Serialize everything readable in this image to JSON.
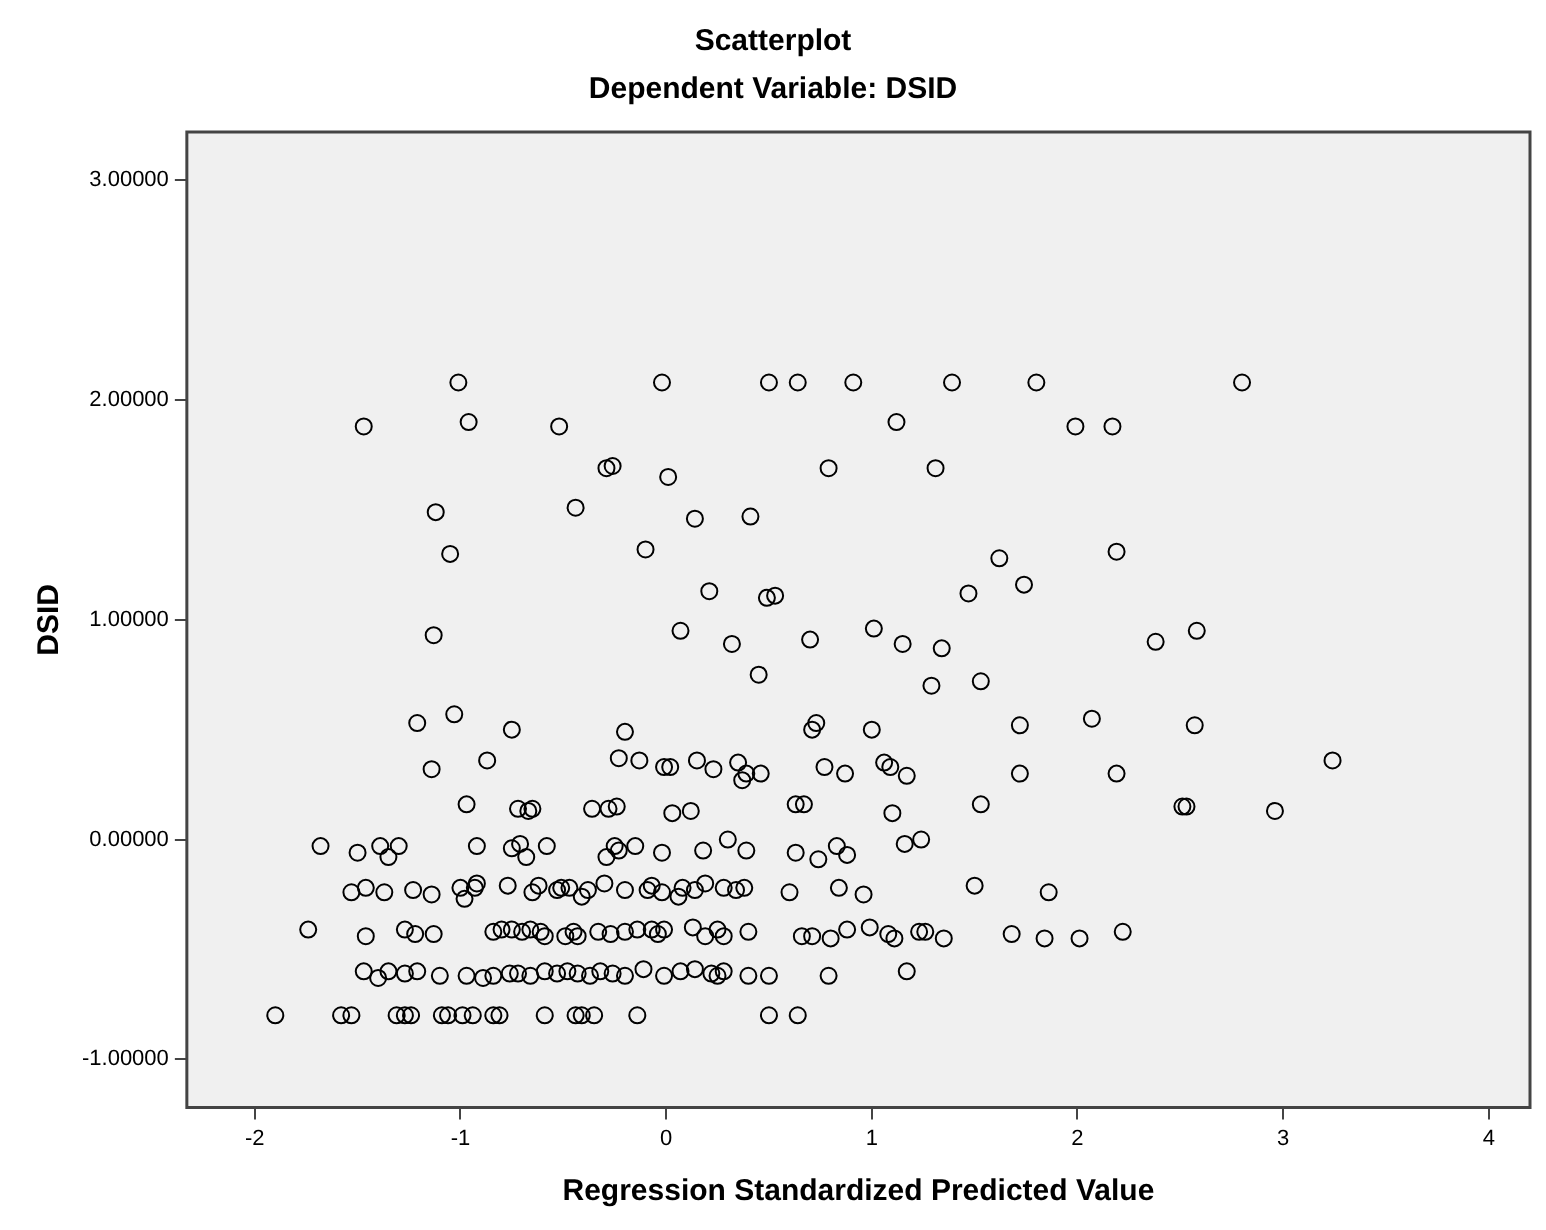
{
  "chart_data": {
    "type": "scatter",
    "title": "Scatterplot",
    "subtitle": "Dependent Variable: DSID",
    "xlabel": "Regression Standardized Predicted Value",
    "ylabel": "DSID",
    "xlim": [
      -2.33,
      4.2
    ],
    "ylim": [
      -1.22,
      3.22
    ],
    "xticks": [
      -2,
      -1,
      0,
      1,
      2,
      3,
      4
    ],
    "yticks": [
      {
        "value": -1,
        "label": "-1.00000"
      },
      {
        "value": 0,
        "label": "0.00000"
      },
      {
        "value": 1,
        "label": "1.00000"
      },
      {
        "value": 2,
        "label": "2.00000"
      },
      {
        "value": 3,
        "label": "3.00000"
      }
    ],
    "grid": false,
    "legend": false,
    "marker": "circle",
    "series": [
      {
        "color": "#000000",
        "x": [
          -1.01,
          -0.02,
          0.5,
          0.64,
          0.91,
          1.39,
          1.8,
          2.8,
          -1.47,
          -0.96,
          -0.52,
          1.12,
          1.99,
          2.17,
          -0.29,
          -0.26,
          0.79,
          1.31,
          0.01,
          -0.44,
          -1.12,
          0.14,
          0.41,
          -0.1,
          2.19,
          -1.05,
          1.62,
          1.74,
          0.21,
          1.47,
          0.49,
          0.53,
          1.01,
          0.07,
          2.58,
          -1.13,
          0.7,
          2.38,
          1.15,
          0.32,
          1.34,
          0.45,
          1.53,
          1.29,
          -1.03,
          2.07,
          -1.21,
          1.72,
          2.57,
          0.73,
          -0.75,
          0.71,
          1.0,
          -0.2,
          -0.23,
          3.24,
          -0.87,
          -0.13,
          0.15,
          0.35,
          1.06,
          -0.01,
          0.02,
          0.77,
          1.09,
          -1.14,
          0.23,
          2.19,
          0.46,
          0.87,
          1.72,
          0.39,
          1.17,
          0.37,
          -0.97,
          1.53,
          2.51,
          2.53,
          0.63,
          0.67,
          -0.72,
          -0.65,
          -0.36,
          -0.28,
          -0.24,
          -0.67,
          2.96,
          0.12,
          0.03,
          1.1,
          -1.68,
          -1.5,
          -1.39,
          -1.35,
          -1.3,
          -0.92,
          -0.75,
          -0.71,
          -0.68,
          -0.58,
          -0.29,
          -0.25,
          -0.23,
          -0.15,
          -0.02,
          0.18,
          0.3,
          0.39,
          0.63,
          0.74,
          0.83,
          0.88,
          1.16,
          1.24,
          -1.53,
          -1.46,
          -1.37,
          -1.23,
          -1.14,
          -1.0,
          -0.98,
          -0.93,
          -0.92,
          -0.77,
          -0.65,
          -0.62,
          -0.53,
          -0.51,
          -0.47,
          -0.41,
          -0.38,
          -0.3,
          -0.2,
          -0.09,
          -0.07,
          -0.02,
          0.06,
          0.08,
          0.14,
          0.19,
          0.28,
          0.34,
          0.38,
          0.6,
          0.84,
          0.96,
          1.5,
          1.86,
          -1.74,
          -1.46,
          -1.27,
          -1.22,
          -1.13,
          -0.84,
          -0.8,
          -0.75,
          -0.7,
          -0.66,
          -0.61,
          -0.59,
          -0.49,
          -0.45,
          -0.43,
          -0.33,
          -0.27,
          -0.2,
          -0.14,
          -0.07,
          -0.04,
          -0.01,
          0.13,
          0.19,
          0.25,
          0.28,
          0.4,
          0.66,
          0.71,
          0.8,
          0.88,
          0.99,
          1.08,
          1.11,
          1.23,
          1.26,
          1.35,
          1.68,
          1.84,
          2.01,
          2.22,
          -1.47,
          -1.4,
          -1.35,
          -1.27,
          -1.21,
          -1.1,
          -0.97,
          -0.89,
          -0.84,
          -0.76,
          -0.72,
          -0.66,
          -0.59,
          -0.53,
          -0.48,
          -0.43,
          -0.37,
          -0.32,
          -0.26,
          -0.2,
          -0.11,
          -0.01,
          0.07,
          0.14,
          0.22,
          0.25,
          0.28,
          0.4,
          0.5,
          0.79,
          1.17,
          -1.9,
          -1.58,
          -1.53,
          -1.31,
          -1.27,
          -1.24,
          -1.09,
          -1.06,
          -0.99,
          -0.94,
          -0.84,
          -0.81,
          -0.59,
          -0.44,
          -0.41,
          -0.35,
          -0.14,
          0.5,
          0.64
        ],
        "values": [
          2.08,
          2.08,
          2.08,
          2.08,
          2.08,
          2.08,
          2.08,
          2.08,
          1.88,
          1.9,
          1.88,
          1.9,
          1.88,
          1.88,
          1.69,
          1.7,
          1.69,
          1.69,
          1.65,
          1.51,
          1.49,
          1.46,
          1.47,
          1.32,
          1.31,
          1.3,
          1.28,
          1.16,
          1.13,
          1.12,
          1.1,
          1.11,
          0.96,
          0.95,
          0.95,
          0.93,
          0.91,
          0.9,
          0.89,
          0.89,
          0.87,
          0.75,
          0.72,
          0.7,
          0.57,
          0.55,
          0.53,
          0.52,
          0.52,
          0.53,
          0.5,
          0.5,
          0.5,
          0.49,
          0.37,
          0.36,
          0.36,
          0.36,
          0.36,
          0.35,
          0.35,
          0.33,
          0.33,
          0.33,
          0.33,
          0.32,
          0.32,
          0.3,
          0.3,
          0.3,
          0.3,
          0.3,
          0.29,
          0.27,
          0.16,
          0.16,
          0.15,
          0.15,
          0.16,
          0.16,
          0.14,
          0.14,
          0.14,
          0.14,
          0.15,
          0.13,
          0.13,
          0.13,
          0.12,
          0.12,
          -0.03,
          -0.06,
          -0.03,
          -0.08,
          -0.03,
          -0.03,
          -0.04,
          -0.02,
          -0.08,
          -0.03,
          -0.08,
          -0.03,
          -0.05,
          -0.03,
          -0.06,
          -0.05,
          0.0,
          -0.05,
          -0.06,
          -0.09,
          -0.03,
          -0.07,
          -0.02,
          0.0,
          -0.24,
          -0.22,
          -0.24,
          -0.23,
          -0.25,
          -0.22,
          -0.27,
          -0.22,
          -0.2,
          -0.21,
          -0.24,
          -0.21,
          -0.23,
          -0.22,
          -0.22,
          -0.26,
          -0.23,
          -0.2,
          -0.23,
          -0.23,
          -0.21,
          -0.24,
          -0.26,
          -0.22,
          -0.23,
          -0.2,
          -0.22,
          -0.23,
          -0.22,
          -0.24,
          -0.22,
          -0.25,
          -0.21,
          -0.24,
          -0.41,
          -0.44,
          -0.41,
          -0.43,
          -0.43,
          -0.42,
          -0.41,
          -0.41,
          -0.42,
          -0.41,
          -0.42,
          -0.44,
          -0.44,
          -0.42,
          -0.44,
          -0.42,
          -0.43,
          -0.42,
          -0.41,
          -0.41,
          -0.43,
          -0.41,
          -0.4,
          -0.44,
          -0.41,
          -0.44,
          -0.42,
          -0.44,
          -0.44,
          -0.45,
          -0.41,
          -0.4,
          -0.43,
          -0.45,
          -0.42,
          -0.42,
          -0.45,
          -0.43,
          -0.45,
          -0.45,
          -0.42,
          -0.6,
          -0.63,
          -0.6,
          -0.61,
          -0.6,
          -0.62,
          -0.62,
          -0.63,
          -0.62,
          -0.61,
          -0.61,
          -0.62,
          -0.6,
          -0.61,
          -0.6,
          -0.61,
          -0.62,
          -0.6,
          -0.61,
          -0.62,
          -0.59,
          -0.62,
          -0.6,
          -0.59,
          -0.61,
          -0.62,
          -0.6,
          -0.62,
          -0.62,
          -0.62,
          -0.6,
          -0.8,
          -0.8,
          -0.8,
          -0.8,
          -0.8,
          -0.8,
          -0.8,
          -0.8,
          -0.8,
          -0.8,
          -0.8,
          -0.8,
          -0.8,
          -0.8,
          -0.8,
          -0.8,
          -0.8,
          -0.8,
          -0.8
        ]
      }
    ]
  }
}
